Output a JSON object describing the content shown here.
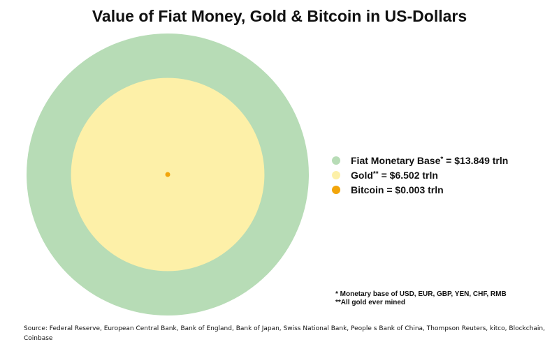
{
  "chart_data": {
    "type": "bubble",
    "title": "Value of Fiat Money, Gold & Bitcoin in US-Dollars",
    "unit": "trln",
    "series": [
      {
        "name": "Fiat Monetary Base",
        "marker": "*",
        "value": 13.849,
        "label": "$13.849 trln",
        "color": "#b7dcb6"
      },
      {
        "name": "Gold",
        "marker": "**",
        "value": 6.502,
        "label": "$6.502 trln",
        "color": "#fdf0a8"
      },
      {
        "name": "Bitcoin",
        "marker": "",
        "value": 0.003,
        "label": "$0.003 trln",
        "color": "#f2a50a"
      }
    ],
    "layout": "concentric circles, area proportional to value",
    "legend_position": "right"
  },
  "notes": [
    "* Monetary base of USD, EUR, GBP, YEN, CHF, RMB",
    "**All gold ever mined"
  ],
  "source": "Source: Federal Reserve, European Central Bank, Bank of England, Bank of Japan, Swiss National Bank, People s Bank of China, Thompson Reuters, kitco, Blockchain, Coinbase"
}
